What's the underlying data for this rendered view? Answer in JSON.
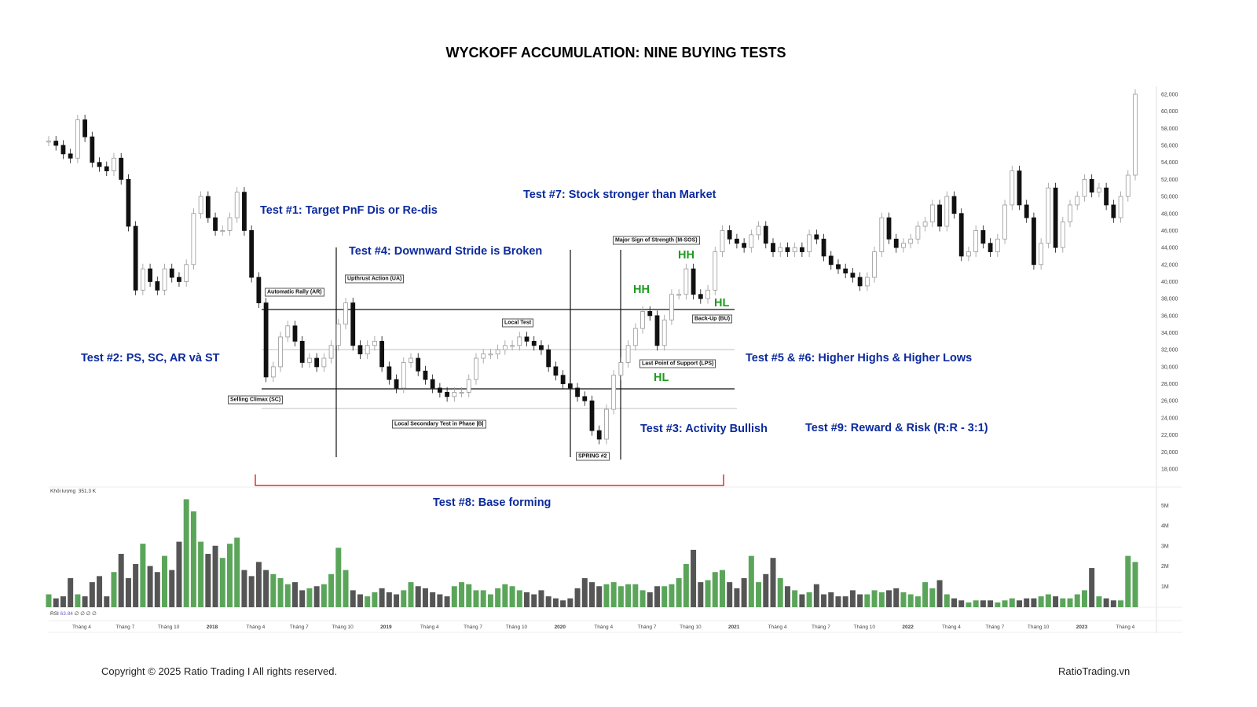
{
  "title": "WYCKOFF ACCUMULATION: NINE BUYING TESTS",
  "annotations": {
    "test1": "Test #1: Target PnF Dis or Re-dis",
    "test2": "Test #2: PS, SC, AR và ST",
    "test3": "Test #3: Activity Bullish",
    "test4": "Test #4: Downward Stride is Broken",
    "test56": "Test #5 & #6: Higher Highs & Higher Lows",
    "test7": "Test #7: Stock stronger than Market",
    "test8": "Test #8: Base forming",
    "test9": "Test #9: Reward & Risk (R:R - 3:1)"
  },
  "events": {
    "ar": "Automatic Rally (AR)",
    "ua": "Upthrust Action (UA)",
    "local_test": "Local Test",
    "msos": "Major Sign of Strength (M-SOS)",
    "bu": "Back-Up (BU)",
    "lps": "Last Point of Support (LPS)",
    "sc": "Selling Climax (SC)",
    "st_b": "Local Secondary Test in Phase |B|",
    "spring": "SPRING #2"
  },
  "swings": {
    "hh1": "HH",
    "hh2": "HH",
    "hl1": "HL",
    "hl2": "HL"
  },
  "indicators": {
    "volume_label": "Khối lượng",
    "volume_value": "351.3 K",
    "rsi_label": "RSI",
    "rsi_value": "63.84",
    "rsi_nulls": "∅ ∅ ∅ ∅"
  },
  "footer": {
    "copyright": "Copyright © 2025 Ratio Trading I All rights reserved.",
    "brand": "RatioTrading.vn"
  },
  "colors": {
    "annotation": "#0c2a9c",
    "swing": "#1e9a1e",
    "up_volume": "#5aa55a",
    "down_volume": "#555555",
    "base_bracket": "#e03030"
  },
  "chart_data": {
    "type": "candlestick",
    "title": "WYCKOFF ACCUMULATION: NINE BUYING TESTS",
    "start_date": "2017-01-23",
    "interval": "half-month",
    "ylim": [
      18000,
      62000
    ],
    "y_ticks": [
      18000,
      20000,
      22000,
      24000,
      26000,
      28000,
      30000,
      32000,
      34000,
      36000,
      38000,
      40000,
      42000,
      44000,
      46000,
      48000,
      50000,
      52000,
      54000,
      56000,
      58000,
      60000,
      62000
    ],
    "y_ticks_labels": [
      "18,000",
      "20,000",
      "22,000",
      "24,000",
      "26,000",
      "28,000",
      "30,000",
      "32,000",
      "34,000",
      "36,000",
      "38,000",
      "40,000",
      "42,000",
      "44,000",
      "46,000",
      "48,000",
      "50,000",
      "52,000",
      "54,000",
      "56,000",
      "58,000",
      "60,000",
      "62,000"
    ],
    "close": [
      56500,
      56000,
      55000,
      54500,
      59000,
      57000,
      54000,
      53500,
      53000,
      54500,
      52000,
      46500,
      39000,
      41500,
      40000,
      39000,
      41500,
      40500,
      40000,
      42000,
      48000,
      50000,
      47500,
      46000,
      46000,
      47500,
      50500,
      46000,
      40500,
      37500,
      28800,
      30000,
      33500,
      34800,
      33000,
      30500,
      31000,
      30000,
      31000,
      32500,
      35000,
      37500,
      32500,
      31500,
      32500,
      33000,
      30000,
      28500,
      27500,
      30500,
      31000,
      29500,
      28500,
      27500,
      27000,
      26500,
      27000,
      27000,
      28500,
      31000,
      31500,
      31500,
      32000,
      32500,
      32500,
      33500,
      33000,
      32500,
      32000,
      30000,
      29000,
      28000,
      27500,
      26500,
      26000,
      22500,
      21500,
      25000,
      29000,
      30500,
      32500,
      34500,
      36500,
      36000,
      32500,
      35500,
      38500,
      38500,
      41500,
      38500,
      38000,
      39000,
      43500,
      46000,
      45000,
      44500,
      44000,
      45500,
      46500,
      44500,
      43500,
      44000,
      43500,
      44000,
      43500,
      45500,
      45000,
      43000,
      42000,
      41500,
      41000,
      40500,
      39500,
      40500,
      43500,
      47500,
      45000,
      44000,
      44500,
      45000,
      46500,
      47000,
      49000,
      46500,
      50000,
      48000,
      43000,
      43500,
      46000,
      44500,
      43500,
      45000,
      49000,
      53000,
      49000,
      47500,
      42000,
      44500,
      51000,
      44000,
      47000,
      49000,
      50000,
      52000,
      50500,
      51000,
      49000,
      47500,
      50000,
      52500,
      62000
    ],
    "volume_millions": [
      0.6,
      0.4,
      0.5,
      1.4,
      0.6,
      0.5,
      1.2,
      1.5,
      0.5,
      1.7,
      2.6,
      1.4,
      2.1,
      3.1,
      2.0,
      1.7,
      2.5,
      1.8,
      3.2,
      5.3,
      4.7,
      3.2,
      2.6,
      3.0,
      2.4,
      3.1,
      3.4,
      1.8,
      1.5,
      2.2,
      1.8,
      1.6,
      1.4,
      1.1,
      1.2,
      0.8,
      0.9,
      1.0,
      1.1,
      1.6,
      2.9,
      1.8,
      0.8,
      0.6,
      0.5,
      0.7,
      0.9,
      0.7,
      0.6,
      0.8,
      1.2,
      1.0,
      0.9,
      0.7,
      0.6,
      0.5,
      1.0,
      1.2,
      1.1,
      0.8,
      0.8,
      0.6,
      0.9,
      1.1,
      1.0,
      0.8,
      0.7,
      0.6,
      0.8,
      0.5,
      0.4,
      0.3,
      0.4,
      0.9,
      1.4,
      1.2,
      1.0,
      1.1,
      1.2,
      1.0,
      1.1,
      1.1,
      0.8,
      0.7,
      1.0,
      1.0,
      1.1,
      1.4,
      2.1,
      2.8,
      1.2,
      1.3,
      1.7,
      1.8,
      1.2,
      0.9,
      1.4,
      2.5,
      1.2,
      1.6,
      2.4,
      1.4,
      1.0,
      0.8,
      0.6,
      0.7,
      1.1,
      0.6,
      0.7,
      0.5,
      0.5,
      0.8,
      0.6,
      0.6,
      0.8,
      0.7,
      0.8,
      0.9,
      0.7,
      0.6,
      0.5,
      1.2,
      0.9,
      1.3,
      0.6,
      0.4,
      0.3,
      0.2,
      0.3,
      0.3,
      0.3,
      0.2,
      0.3,
      0.4,
      0.3,
      0.4,
      0.4,
      0.5,
      0.6,
      0.5,
      0.4,
      0.4,
      0.6,
      0.8,
      1.9,
      0.5,
      0.4,
      0.3,
      0.3,
      2.5,
      2.2
    ],
    "volume_ticks": [
      "1M",
      "2M",
      "3M",
      "4M",
      "5M"
    ],
    "x_ticks": [
      {
        "label": "Tháng 4",
        "date": "2017-04"
      },
      {
        "label": "Tháng 7",
        "date": "2017-07"
      },
      {
        "label": "Tháng 10",
        "date": "2017-10"
      },
      {
        "label": "2018",
        "date": "2018-01",
        "bold": true
      },
      {
        "label": "Tháng 4",
        "date": "2018-04"
      },
      {
        "label": "Tháng 7",
        "date": "2018-07"
      },
      {
        "label": "Tháng 10",
        "date": "2018-10"
      },
      {
        "label": "2019",
        "date": "2019-01",
        "bold": true
      },
      {
        "label": "Tháng 4",
        "date": "2019-04"
      },
      {
        "label": "Tháng 7",
        "date": "2019-07"
      },
      {
        "label": "Tháng 10",
        "date": "2019-10"
      },
      {
        "label": "2020",
        "date": "2020-01",
        "bold": true
      },
      {
        "label": "Tháng 4",
        "date": "2020-04"
      },
      {
        "label": "Tháng 7",
        "date": "2020-07"
      },
      {
        "label": "Tháng 10",
        "date": "2020-10"
      },
      {
        "label": "2021",
        "date": "2021-01",
        "bold": true
      },
      {
        "label": "Tháng 4",
        "date": "2021-04"
      },
      {
        "label": "Tháng 7",
        "date": "2021-07"
      },
      {
        "label": "Tháng 10",
        "date": "2021-10"
      },
      {
        "label": "2022",
        "date": "2022-01",
        "bold": true
      },
      {
        "label": "Tháng 4",
        "date": "2022-04"
      },
      {
        "label": "Tháng 7",
        "date": "2022-07"
      },
      {
        "label": "Tháng 10",
        "date": "2022-10"
      },
      {
        "label": "2023",
        "date": "2023-01",
        "bold": true
      },
      {
        "label": "Tháng 4",
        "date": "2023-04"
      }
    ],
    "levels": {
      "ar_resistance": 36800,
      "sc_support": 27300,
      "mid_range": 32000,
      "st_low": 25000
    },
    "grid": false
  }
}
